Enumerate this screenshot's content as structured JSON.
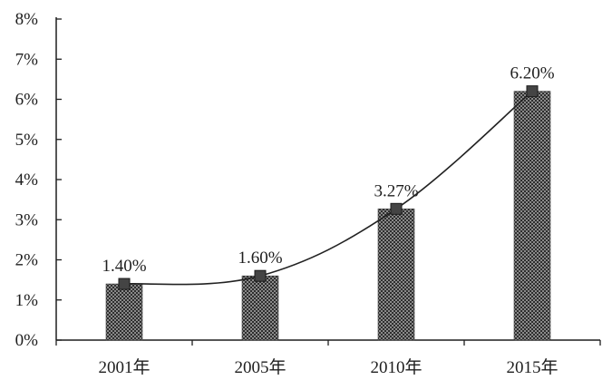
{
  "chart_data": {
    "type": "bar",
    "categories": [
      "2001年",
      "2005年",
      "2010年",
      "2015年"
    ],
    "values": [
      1.4,
      1.6,
      3.27,
      6.2
    ],
    "series": [
      {
        "name": "",
        "type": "bar",
        "values": [
          1.4,
          1.6,
          3.27,
          6.2
        ]
      },
      {
        "name": "",
        "type": "line",
        "values": [
          1.4,
          1.6,
          3.27,
          6.2
        ]
      }
    ],
    "data_labels": [
      "1.40%",
      "1.60%",
      "3.27%",
      "6.20%"
    ],
    "y_ticks": [
      "0%",
      "1%",
      "2%",
      "3%",
      "4%",
      "5%",
      "6%",
      "7%",
      "8%"
    ],
    "ylim": [
      0,
      8
    ],
    "title": "",
    "xlabel": "",
    "ylabel": "",
    "grid": false,
    "legend": "none",
    "colors": {
      "bar_fill": "#5a5a5a",
      "line": "#222222",
      "marker": "#444444",
      "axis": "#1e1e1e"
    }
  }
}
